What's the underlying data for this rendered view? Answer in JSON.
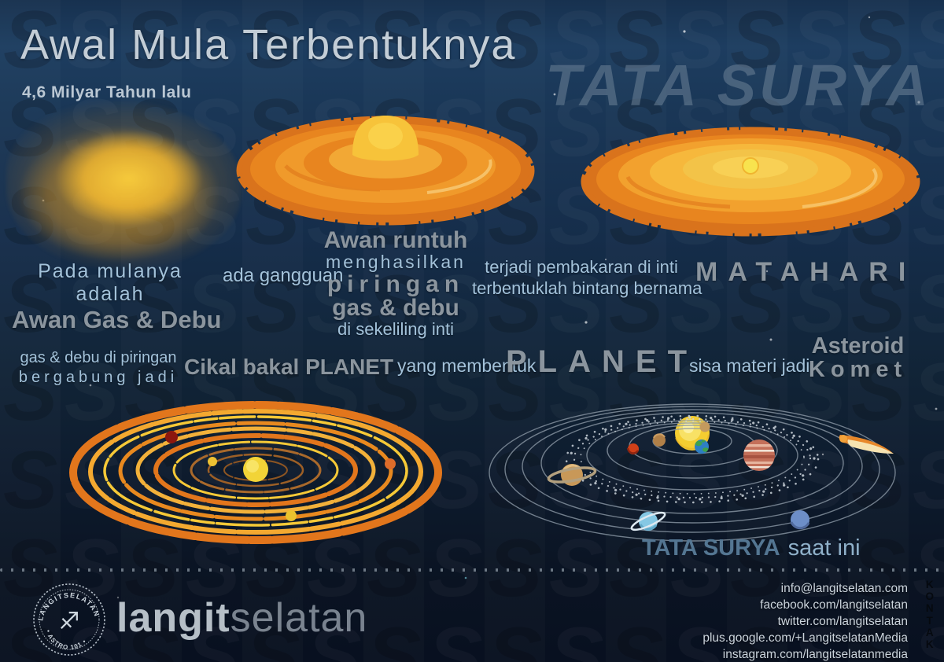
{
  "header": {
    "title": "Awal Mula Terbentuknya",
    "subtitle": "4,6 Milyar Tahun lalu",
    "big_title": "TATA SURYA"
  },
  "story": {
    "origin_intro": "Pada mulanya adalah",
    "origin_bold": "Awan Gas & Debu",
    "disturbance": "ada gangguan",
    "collapse_bold": "Awan runtuh",
    "collapse_l2": "menghasilkan",
    "collapse_l3": "piringan",
    "collapse_l4": "gas & debu",
    "collapse_l5": "di sekeliling inti",
    "ignition_l1": "terjadi pembakaran di inti",
    "ignition_l2": "terbentuklah bintang bernama",
    "sun_name": "MATAHARI",
    "accrete_l1": "gas & debu di piringan",
    "accrete_l2": "bergabung jadi",
    "protoplanet": "Cikal bakal PLANET",
    "forming": "yang membentuk",
    "planet_word": "PLANET",
    "leftover": "sisa materi jadi",
    "asteroid_word": "Asteroid",
    "komet_word": "Komet",
    "caption_bold": "TATA SURYA",
    "caption_tail": "saat ini"
  },
  "footer": {
    "brand_bold": "langit",
    "brand_light": "selatan",
    "stamp_top": "LANGITSELATAN",
    "stamp_bottom": "• ASTRO 101 •",
    "kontak_label": "KONTAK",
    "contacts": [
      "info@langitselatan.com",
      "facebook.com/langitselatan",
      "twitter.com/langitselatan",
      "plus.google.com/+LangitselatanMedia",
      "instagram.com/langitselatanmedia"
    ]
  },
  "colors": {
    "background_navy": "#14273f",
    "disk_orange": "#e8851f",
    "disk_edge_orange": "#d9731c",
    "sun_yellow": "#f2d437",
    "nebula_yellow": "#f4b930",
    "text_light_blue": "#a3c2da",
    "text_gray": "#8b959e",
    "big_title_gray": "#6d8297",
    "orbit_gray": "#8a97a4"
  }
}
